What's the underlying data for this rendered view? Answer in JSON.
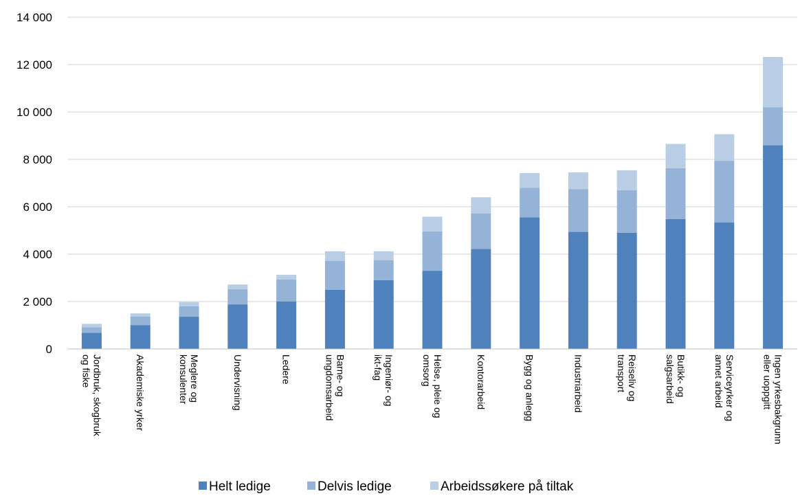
{
  "chart_data": {
    "type": "bar",
    "stacked": true,
    "categories": [
      "Jordbruk, skogbruk og fiske",
      "Akademiske yrker",
      "Meglere og konsulenter",
      "Undervisning",
      "Ledere",
      "Barne- og ungdomsarbeid",
      "Ingeniør- og ikt-fag",
      "Helse, pleie og omsorg",
      "Kontorarbeid",
      "Bygg og anlegg",
      "Industriarbeid",
      "Reiseliv og transport",
      "Butikk- og salgsarbeid",
      "Serviceyrker og annet arbeid",
      "Ingen yrkesbakgrunn eller uoppgitt"
    ],
    "series": [
      {
        "name": "Helt ledige",
        "color": "#4f81bd",
        "values": [
          680,
          1000,
          1360,
          1880,
          2000,
          2500,
          2900,
          3300,
          4220,
          5550,
          4940,
          4900,
          5480,
          5340,
          8600
        ]
      },
      {
        "name": "Delvis ledige",
        "color": "#95b3d7",
        "values": [
          240,
          370,
          440,
          640,
          930,
          1220,
          840,
          1660,
          1500,
          1250,
          1800,
          1800,
          2150,
          2600,
          1600
        ]
      },
      {
        "name": "Arbeidssøkere på tiltak",
        "color": "#b9cde5",
        "values": [
          140,
          130,
          180,
          200,
          200,
          400,
          380,
          620,
          680,
          620,
          710,
          840,
          1020,
          1120,
          2120
        ]
      }
    ],
    "y_ticks": [
      "0",
      "2 000",
      "4 000",
      "6 000",
      "8 000",
      "10 000",
      "12 000",
      "14 000"
    ],
    "ylim": [
      0,
      14000
    ],
    "grid": true,
    "legend_position": "bottom"
  }
}
